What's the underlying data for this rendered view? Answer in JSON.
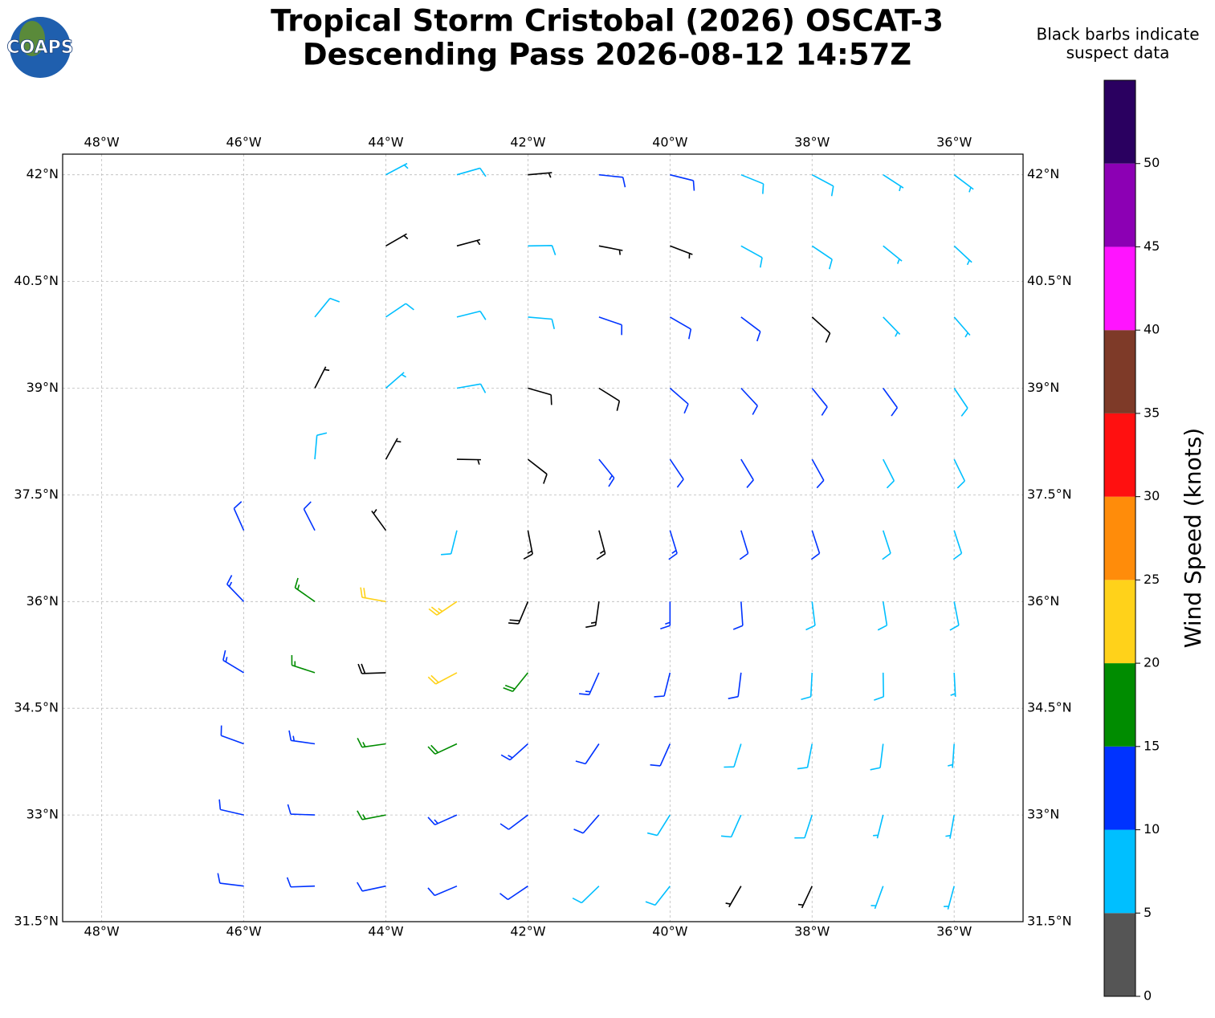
{
  "header": {
    "title_lines": [
      "Tropical Storm Cristobal (2026) OSCAT-3",
      "Descending Pass 2026-08-12 14:57Z"
    ],
    "logo": "COAPS"
  },
  "note": [
    "Black barbs indicate",
    "suspect data"
  ],
  "map": {
    "xlim": [
      -48.55,
      -35.03
    ],
    "ylim": [
      31.5,
      42.29
    ],
    "grid": true,
    "xticks": [
      {
        "value": -48,
        "label": "48°W"
      },
      {
        "value": -46,
        "label": "46°W"
      },
      {
        "value": -44,
        "label": "44°W"
      },
      {
        "value": -42,
        "label": "42°W"
      },
      {
        "value": -40,
        "label": "40°W"
      },
      {
        "value": -38,
        "label": "38°W"
      },
      {
        "value": -36,
        "label": "36°W"
      }
    ],
    "yticks": [
      {
        "value": 31.5,
        "label": "31.5°N"
      },
      {
        "value": 33,
        "label": "33°N"
      },
      {
        "value": 34.5,
        "label": "34.5°N"
      },
      {
        "value": 36,
        "label": "36°N"
      },
      {
        "value": 37.5,
        "label": "37.5°N"
      },
      {
        "value": 39,
        "label": "39°N"
      },
      {
        "value": 40.5,
        "label": "40.5°N"
      },
      {
        "value": 42,
        "label": "42°N"
      }
    ]
  },
  "barbs": {
    "lon": [
      -44,
      -43,
      -42,
      -41,
      -40,
      -39,
      -38,
      -37,
      -36,
      -44,
      -43,
      -42,
      -41,
      -40,
      -39,
      -38,
      -37,
      -36,
      -45,
      -44,
      -43,
      -42,
      -41,
      -40,
      -39,
      -38,
      -37,
      -36,
      -45,
      -44,
      -43,
      -42,
      -41,
      -40,
      -39,
      -38,
      -37,
      -36,
      -45,
      -44,
      -43,
      -42,
      -41,
      -40,
      -39,
      -38,
      -37,
      -36,
      -46,
      -45,
      -44,
      -43,
      -42,
      -41,
      -40,
      -39,
      -38,
      -37,
      -36,
      -46,
      -45,
      -44,
      -43,
      -42,
      -41,
      -40,
      -39,
      -38,
      -37,
      -36,
      -46,
      -45,
      -44,
      -43,
      -42,
      -41,
      -40,
      -39,
      -38,
      -37,
      -36,
      -46,
      -45,
      -44,
      -43,
      -42,
      -41,
      -40,
      -39,
      -38,
      -37,
      -36,
      -46,
      -45,
      -44,
      -43,
      -42,
      -41,
      -40,
      -39,
      -38,
      -37,
      -36,
      -46,
      -45,
      -44,
      -43,
      -42,
      -41,
      -40,
      -39,
      -38,
      -37,
      -36
    ],
    "lat": [
      42,
      42,
      42,
      42,
      42,
      42,
      42,
      42,
      42,
      41,
      41,
      41,
      41,
      41,
      41,
      41,
      41,
      41,
      40,
      40,
      40,
      40,
      40,
      40,
      40,
      40,
      40,
      40,
      39,
      39,
      39,
      39,
      39,
      39,
      39,
      39,
      39,
      39,
      38,
      38,
      38,
      38,
      38,
      38,
      38,
      38,
      38,
      38,
      37,
      37,
      37,
      37,
      37,
      37,
      37,
      37,
      37,
      37,
      37,
      36,
      36,
      36,
      36,
      36,
      36,
      36,
      36,
      36,
      36,
      36,
      35,
      35,
      35,
      35,
      35,
      35,
      35,
      35,
      35,
      35,
      35,
      34,
      34,
      34,
      34,
      34,
      34,
      34,
      34,
      34,
      34,
      34,
      33,
      33,
      33,
      33,
      33,
      33,
      33,
      33,
      33,
      33,
      33,
      32,
      32,
      32,
      32,
      32,
      32,
      32,
      32,
      32,
      32,
      32
    ],
    "speed": [
      7,
      8,
      6,
      12,
      11,
      9,
      8,
      7,
      7,
      6,
      5,
      8,
      6,
      7,
      9,
      8,
      7,
      6,
      8,
      8,
      9,
      9,
      10,
      11,
      10,
      8,
      6,
      7,
      4,
      7,
      8,
      9,
      11,
      12,
      12,
      11,
      12,
      9,
      8,
      4,
      5,
      12,
      13,
      12,
      12,
      10,
      9,
      9,
      11,
      10,
      7,
      8,
      17,
      16,
      14,
      12,
      10,
      9,
      8,
      14,
      17,
      22,
      24,
      18,
      16,
      13,
      12,
      9,
      9,
      8,
      13,
      17,
      18,
      22,
      19,
      13,
      12,
      10,
      8,
      8,
      7,
      12,
      14,
      17,
      18,
      14,
      12,
      11,
      9,
      8,
      8,
      7,
      12,
      12,
      16,
      13,
      12,
      10,
      9,
      8,
      8,
      7,
      7,
      12,
      11,
      12,
      11,
      10,
      9,
      8,
      6,
      5,
      7,
      7
    ],
    "dir": [
      62,
      74,
      85,
      96,
      104,
      112,
      118,
      123,
      127,
      60,
      75,
      89,
      101,
      111,
      119,
      124,
      129,
      133,
      39,
      56,
      76,
      95,
      109,
      120,
      127,
      132,
      136,
      139,
      27,
      49,
      80,
      106,
      122,
      131,
      137,
      141,
      144,
      146,
      5,
      29,
      91,
      128,
      141,
      146,
      149,
      151,
      153,
      154,
      336,
      333,
      324,
      194,
      169,
      165,
      163,
      163,
      162,
      162,
      162,
      316,
      305,
      280,
      236,
      203,
      188,
      180,
      176,
      173,
      171,
      169,
      301,
      288,
      268,
      242,
      219,
      204,
      194,
      187,
      183,
      179,
      177,
      290,
      278,
      262,
      245,
      228,
      214,
      204,
      197,
      191,
      187,
      184,
      283,
      272,
      259,
      246,
      233,
      221,
      212,
      204,
      198,
      194,
      190,
      277,
      268,
      258,
      247,
      236,
      226,
      218,
      210,
      205,
      200,
      195
    ],
    "suspect": [
      false,
      false,
      true,
      false,
      false,
      false,
      false,
      false,
      false,
      true,
      true,
      false,
      true,
      true,
      false,
      false,
      false,
      false,
      false,
      false,
      false,
      false,
      false,
      false,
      false,
      true,
      false,
      false,
      true,
      false,
      false,
      true,
      true,
      false,
      false,
      false,
      false,
      false,
      false,
      true,
      true,
      true,
      false,
      false,
      false,
      false,
      false,
      false,
      false,
      false,
      true,
      false,
      true,
      true,
      false,
      false,
      false,
      false,
      false,
      false,
      false,
      false,
      false,
      true,
      true,
      false,
      false,
      false,
      false,
      false,
      false,
      false,
      true,
      false,
      false,
      false,
      false,
      false,
      false,
      false,
      false,
      false,
      false,
      false,
      false,
      false,
      false,
      false,
      false,
      false,
      false,
      false,
      false,
      false,
      false,
      false,
      false,
      false,
      false,
      false,
      false,
      false,
      false,
      false,
      false,
      false,
      false,
      false,
      false,
      false,
      true,
      true,
      false,
      false
    ],
    "suspect_color": "#000000"
  },
  "colorbar": {
    "label": "Wind Speed (knots)",
    "lim": [
      0,
      55
    ],
    "bounds": [
      0,
      5,
      10,
      15,
      20,
      25,
      30,
      35,
      40,
      45,
      50,
      55
    ],
    "colors": [
      "#555555",
      "#00bfff",
      "#0033ff",
      "#008c00",
      "#ffd21a",
      "#ff8c0a",
      "#ff1010",
      "#7e3a28",
      "#ff14ff",
      "#8c00b4",
      "#2a0060"
    ],
    "ticks": [
      0,
      5,
      10,
      15,
      20,
      25,
      30,
      35,
      40,
      45,
      50
    ]
  }
}
